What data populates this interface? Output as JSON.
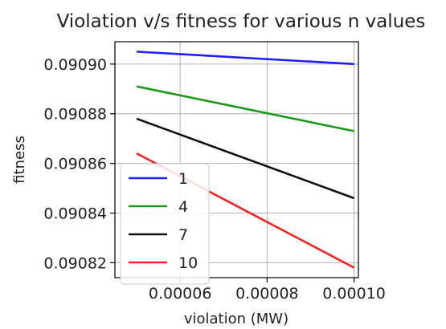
{
  "chart_data": {
    "type": "line",
    "title": "Violation v/s fitness for various n values",
    "xlabel": "violation (MW)",
    "ylabel": "fitness",
    "xlim": [
      4.5e-05,
      0.000101
    ],
    "ylim": [
      0.090814,
      0.090909
    ],
    "xticks": [
      {
        "value": 6e-05,
        "label": "0.00006"
      },
      {
        "value": 8e-05,
        "label": "0.00008"
      },
      {
        "value": 0.0001,
        "label": "0.00010"
      }
    ],
    "yticks": [
      {
        "value": 0.09082,
        "label": "0.09082"
      },
      {
        "value": 0.09084,
        "label": "0.09084"
      },
      {
        "value": 0.09086,
        "label": "0.09086"
      },
      {
        "value": 0.09088,
        "label": "0.09088"
      },
      {
        "value": 0.0909,
        "label": "0.09090"
      }
    ],
    "grid": true,
    "legend": "bottom-left",
    "series": [
      {
        "name": "1",
        "color": "#1f1fff",
        "x": [
          5e-05,
          0.0001
        ],
        "y": [
          0.090905,
          0.0909
        ]
      },
      {
        "name": "4",
        "color": "#1a9a1a",
        "x": [
          5e-05,
          0.0001
        ],
        "y": [
          0.090891,
          0.090873
        ]
      },
      {
        "name": "7",
        "color": "#111111",
        "x": [
          5e-05,
          0.0001
        ],
        "y": [
          0.090878,
          0.090846
        ]
      },
      {
        "name": "10",
        "color": "#ff2020",
        "x": [
          5e-05,
          0.0001
        ],
        "y": [
          0.090864,
          0.090818
        ]
      }
    ]
  }
}
